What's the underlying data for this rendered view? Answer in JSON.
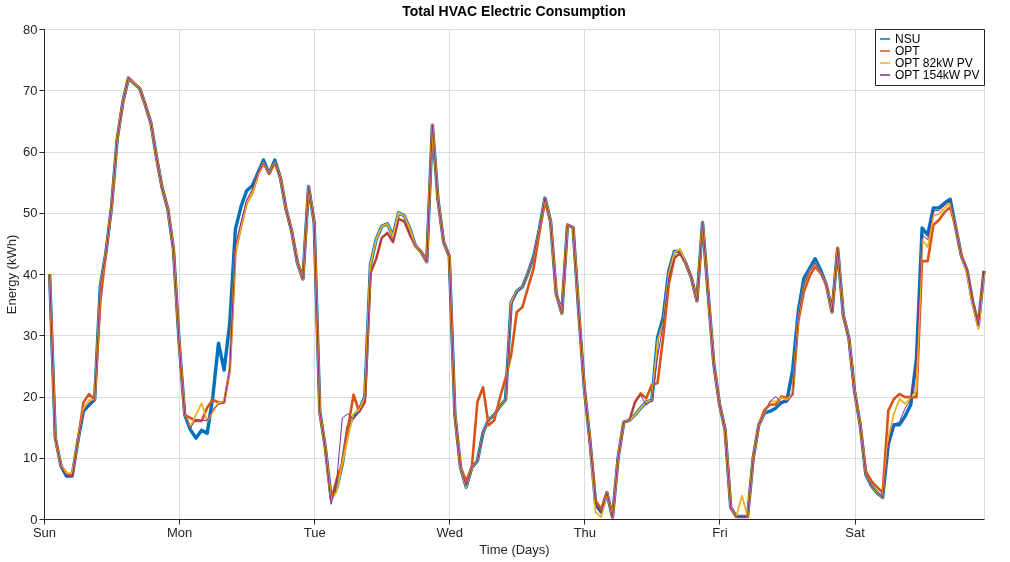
{
  "chart_data": {
    "type": "line",
    "title": "Total HVAC Electric Consumption",
    "xlabel": "Time (Days)",
    "ylabel": "Energy (kWh)",
    "categories": [
      "Sun",
      null,
      null,
      null,
      null,
      null,
      null,
      null,
      null,
      null,
      null,
      null,
      null,
      null,
      null,
      null,
      null,
      null,
      null,
      null,
      null,
      null,
      null,
      null,
      "Mon",
      null,
      null,
      null,
      null,
      null,
      null,
      null,
      null,
      null,
      null,
      null,
      null,
      null,
      null,
      null,
      null,
      null,
      null,
      null,
      null,
      null,
      null,
      null,
      "Tue",
      null,
      null,
      null,
      null,
      null,
      null,
      null,
      null,
      null,
      null,
      null,
      null,
      null,
      null,
      null,
      null,
      null,
      null,
      null,
      null,
      null,
      null,
      null,
      "Wed",
      null,
      null,
      null,
      null,
      null,
      null,
      null,
      null,
      null,
      null,
      null,
      null,
      null,
      null,
      null,
      null,
      null,
      null,
      null,
      null,
      null,
      null,
      null,
      "Thu",
      null,
      null,
      null,
      null,
      null,
      null,
      null,
      null,
      null,
      null,
      null,
      null,
      null,
      null,
      null,
      null,
      null,
      null,
      null,
      null,
      null,
      null,
      null,
      "Fri",
      null,
      null,
      null,
      null,
      null,
      null,
      null,
      null,
      null,
      null,
      null,
      null,
      null,
      null,
      null,
      null,
      null,
      null,
      null,
      null,
      null,
      null,
      null,
      "Sat",
      null,
      null,
      null,
      null,
      null,
      null,
      null,
      null,
      null,
      null,
      null,
      null,
      null,
      null,
      null,
      null,
      null,
      null,
      null,
      null,
      null,
      null,
      null
    ],
    "ylim": [
      0,
      80
    ],
    "yticks": [
      0,
      10,
      20,
      30,
      40,
      50,
      60,
      70,
      80
    ],
    "grid": true,
    "legend": "top right",
    "marker": "none",
    "line_style": "solid",
    "series": [
      {
        "name": "NSU",
        "color": "#0072bd",
        "values": [
          null,
          40,
          13.3,
          8.7,
          7,
          7,
          12.6,
          17.6,
          18.6,
          19.5,
          38,
          43.5,
          51,
          62,
          68,
          72,
          71.1,
          70.3,
          67.6,
          64.6,
          59,
          54,
          50.6,
          44,
          28.9,
          17,
          14.6,
          13.2,
          14.5,
          14,
          20,
          28.7,
          24.3,
          32,
          47.3,
          51,
          53.6,
          54.4,
          56.5,
          58.6,
          56.4,
          58.6,
          55.7,
          50.6,
          47,
          41.9,
          39.2,
          54.3,
          48.4,
          17.5,
          11.5,
          3.5,
          5,
          9,
          15,
          16.8,
          17.8,
          20,
          41.5,
          45.6,
          47.8,
          48.2,
          46.2,
          50,
          49.5,
          47.4,
          44.6,
          43.6,
          42,
          64.3,
          52.1,
          45.2,
          42.9,
          17,
          8.4,
          5.2,
          8.4,
          9.5,
          14.1,
          16.2,
          17,
          18.4,
          19.5,
          35.4,
          37.2,
          37.9,
          40.2,
          42.9,
          47.3,
          52.4,
          48.6,
          36.8,
          33.6,
          48,
          47.6,
          33.8,
          21.3,
          12.7,
          2.4,
          1.1,
          4.3,
          0.3,
          10,
          15.8,
          16.1,
          17,
          18.1,
          19.1,
          19.4,
          29.6,
          32.9,
          40.5,
          43.7,
          43.7,
          41.8,
          39.4,
          35.6,
          48.4,
          36.7,
          25.3,
          18.8,
          14.6,
          1.9,
          0.4,
          0.4,
          0.4,
          10,
          15.4,
          17.3,
          17.6,
          18.1,
          19,
          19.4,
          24.3,
          33.9,
          39.3,
          40.9,
          42.5,
          40.6,
          38.2,
          33.8,
          44.2,
          33.3,
          29.5,
          20.9,
          15.4,
          7.3,
          5.4,
          4.3,
          3.5,
          12.2,
          15.4,
          15.4,
          16.8,
          18.7,
          26.2,
          47.5,
          46.4,
          50.8,
          50.8,
          51.6,
          52.2,
          47.5,
          42.9,
          40.5,
          35.4,
          31.6,
          40.5
        ]
      },
      {
        "name": "OPT",
        "color": "#d95319",
        "values": [
          null,
          40,
          13.3,
          8.7,
          7.5,
          7,
          12.6,
          19,
          20.4,
          19.5,
          35.5,
          43.5,
          51,
          62,
          68,
          72,
          71.1,
          70.3,
          67.6,
          64.6,
          59,
          54,
          50.6,
          44,
          28.9,
          17,
          16.5,
          16,
          16,
          18.2,
          19.5,
          19,
          19,
          24.3,
          43.5,
          47.8,
          51.6,
          53.2,
          56.2,
          58.1,
          56.4,
          58.1,
          55.7,
          50.6,
          47,
          41.9,
          39.2,
          54.3,
          48.4,
          17.5,
          11.5,
          3,
          6.5,
          9,
          15,
          20.3,
          17.5,
          19.1,
          40.2,
          42.4,
          45.9,
          46.7,
          45.2,
          49,
          48.6,
          46.4,
          44.6,
          43.6,
          42,
          64.3,
          52.1,
          45.2,
          42.9,
          17,
          8.4,
          6.2,
          8.4,
          19.1,
          21.5,
          15.3,
          16.1,
          19.8,
          23,
          26.8,
          33.8,
          34.6,
          37.8,
          41,
          46.7,
          51.9,
          48.6,
          36.8,
          33.6,
          48,
          47.6,
          33.8,
          21.3,
          12.7,
          3,
          1.6,
          4.3,
          0.3,
          10,
          15.8,
          16.1,
          19.1,
          20.5,
          19.7,
          21.9,
          22.2,
          29.6,
          38.3,
          42.6,
          43.4,
          41.8,
          39.4,
          35.6,
          48.4,
          36.7,
          25.3,
          18.8,
          14.6,
          1.9,
          0.4,
          0.4,
          0.4,
          10,
          15.4,
          17.8,
          18.7,
          18.7,
          20,
          19.8,
          20.3,
          32.2,
          37.1,
          39.6,
          41.2,
          40.1,
          38.2,
          33.8,
          44.2,
          33.3,
          29.5,
          20.9,
          15.4,
          7.8,
          6.2,
          5.2,
          4.3,
          17.7,
          19.6,
          20.4,
          19.9,
          19.9,
          19.9,
          42.1,
          42.1,
          48,
          48.8,
          50.1,
          50.9,
          47.5,
          42.9,
          40.5,
          35.4,
          31.6,
          40.5
        ]
      },
      {
        "name": "OPT 82kW PV",
        "color": "#edb120",
        "values": [
          null,
          40,
          13.3,
          8.7,
          7.5,
          7.5,
          12.6,
          18,
          19.4,
          19.5,
          38,
          43.5,
          51,
          62,
          68,
          72,
          71.1,
          70.3,
          67.6,
          64.6,
          59,
          54,
          50.6,
          44,
          28.9,
          17,
          15,
          17,
          18.9,
          16,
          17.5,
          19,
          19,
          24.3,
          43.5,
          47.8,
          51.6,
          53.2,
          56.2,
          58.1,
          56.4,
          58.1,
          55.7,
          50.6,
          47,
          41.9,
          39.2,
          54.3,
          48.4,
          17.5,
          11.5,
          3,
          4.5,
          9,
          13.3,
          17.2,
          17.8,
          20,
          41.5,
          45.6,
          47.8,
          48.2,
          46.2,
          50,
          49.5,
          47.4,
          44.6,
          43.6,
          42,
          64.3,
          52.1,
          45.2,
          42.9,
          17,
          8.4,
          5.2,
          8.4,
          9.5,
          14.1,
          16.2,
          17,
          18.4,
          19.5,
          35.4,
          37.2,
          37.9,
          40.2,
          42.9,
          47.3,
          52.4,
          48.6,
          36.8,
          33.6,
          48,
          47.6,
          33.8,
          21.3,
          12.7,
          1.1,
          0.3,
          4.3,
          0.3,
          10,
          15.8,
          16.1,
          17,
          18.1,
          19.1,
          19.4,
          29,
          32,
          40,
          43.5,
          44.1,
          41.8,
          39.4,
          35.6,
          48.4,
          36.7,
          25.3,
          18.8,
          14.6,
          1.9,
          0.4,
          3.8,
          0.4,
          10,
          15.4,
          17.3,
          19.2,
          19.2,
          19.8,
          19.5,
          20.3,
          32.8,
          38.2,
          40.4,
          41.8,
          40.1,
          38.2,
          33.8,
          44.2,
          33.3,
          29.5,
          20.9,
          15.4,
          7.3,
          5.4,
          4.3,
          3.5,
          13.3,
          17.2,
          19.6,
          18.8,
          19.8,
          21,
          45.6,
          44.4,
          49.5,
          49.8,
          50.8,
          51.6,
          47.5,
          42.9,
          40,
          35,
          31,
          40
        ]
      },
      {
        "name": "OPT 154kW PV",
        "color": "#7e2f8e",
        "values": [
          null,
          40,
          13.3,
          8.7,
          7,
          7,
          12.6,
          17.6,
          18.6,
          19.5,
          38,
          43.5,
          51,
          62,
          68,
          72,
          71.1,
          70.3,
          67.6,
          64.6,
          59,
          54,
          50.6,
          44,
          28.9,
          17,
          14.8,
          16.3,
          16.1,
          16.1,
          17.9,
          18.7,
          19,
          24.5,
          44.6,
          48.4,
          52.1,
          53.8,
          56.4,
          58.1,
          56.4,
          58.1,
          55.7,
          50.6,
          47,
          41.9,
          39.2,
          54.3,
          48.4,
          17.5,
          11.5,
          2.4,
          6.2,
          16.5,
          17.2,
          16.3,
          17.5,
          19.1,
          40.2,
          42.4,
          45.9,
          46.7,
          45.2,
          49,
          48.6,
          46.4,
          44.6,
          43.6,
          42,
          64.3,
          52.1,
          45.2,
          42.9,
          17,
          8.4,
          5.4,
          8.4,
          9.5,
          14.1,
          16.2,
          17,
          18.4,
          19.5,
          34.9,
          37.1,
          37.9,
          40.2,
          42.9,
          47.3,
          52.4,
          48.6,
          36.8,
          33.6,
          48,
          47.6,
          33.8,
          21.3,
          12.7,
          2.4,
          1.1,
          4.3,
          0.3,
          10,
          15.8,
          16.1,
          19.1,
          20.2,
          18.6,
          19.4,
          26.4,
          31.8,
          39.4,
          42.6,
          43.4,
          41.8,
          39.4,
          35.6,
          48.4,
          36.7,
          25.3,
          18.8,
          14.6,
          1.9,
          0.4,
          0.4,
          0.4,
          10,
          15.4,
          17.3,
          19.2,
          20,
          19,
          19,
          20.3,
          32.8,
          38.2,
          40.4,
          41.8,
          40.1,
          38.2,
          33.8,
          44.2,
          33.3,
          29.5,
          20.9,
          15.4,
          7.3,
          5.4,
          4.3,
          3.5,
          12.2,
          15.4,
          15.9,
          18.1,
          19.5,
          26.2,
          46.4,
          45.6,
          50.3,
          50.4,
          51.2,
          52,
          47.5,
          42.9,
          40.5,
          35.4,
          31.6,
          40.5
        ]
      }
    ]
  }
}
